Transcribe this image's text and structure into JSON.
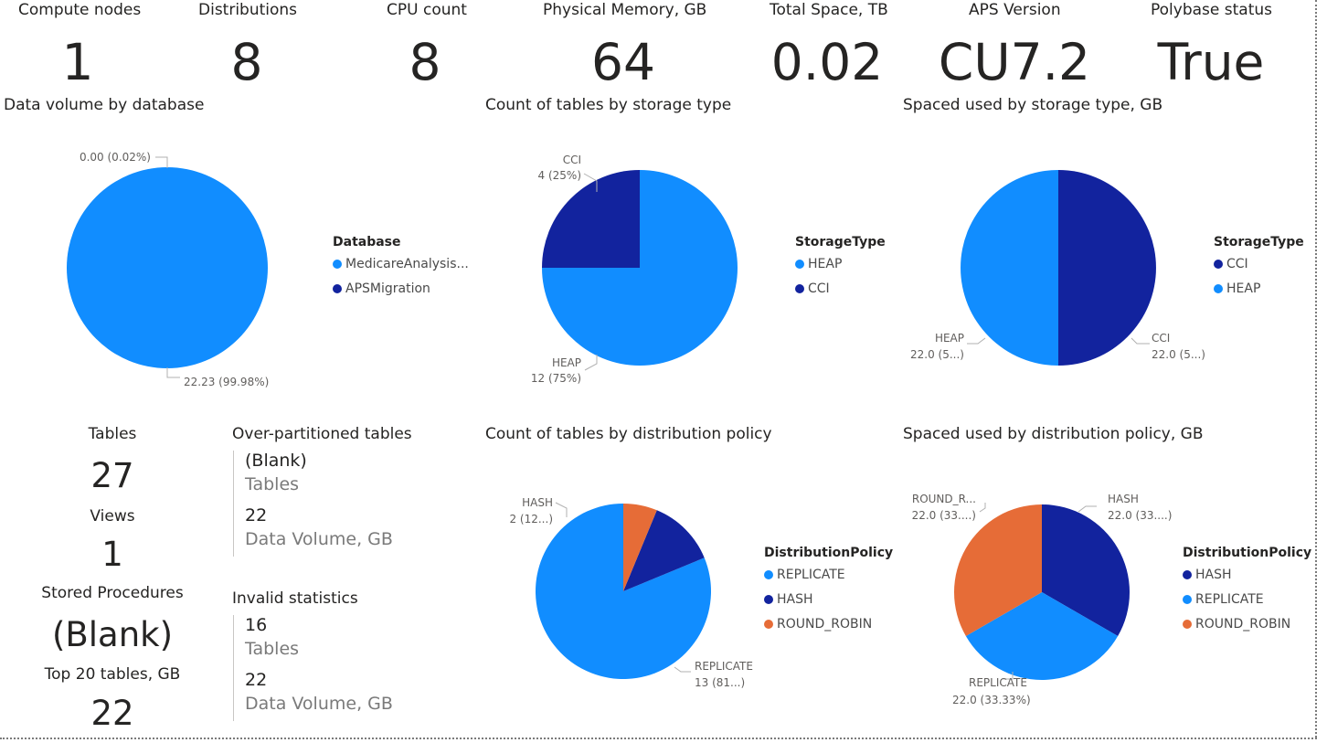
{
  "kpis": [
    {
      "title": "Compute nodes",
      "value": "1"
    },
    {
      "title": "Distributions",
      "value": "8"
    },
    {
      "title": "CPU count",
      "value": "8"
    },
    {
      "title": "Physical Memory, GB",
      "value": "64"
    },
    {
      "title": "Total Space, TB",
      "value": "0.02"
    },
    {
      "title": "APS Version",
      "value": "CU7.2"
    },
    {
      "title": "Polybase status",
      "value": "True"
    }
  ],
  "left_stats": [
    {
      "title": "Tables",
      "value": "27"
    },
    {
      "title": "Views",
      "value": "1"
    },
    {
      "title": "Stored Procedures",
      "value": "(Blank)"
    },
    {
      "title": "Top 20 tables, GB",
      "value": "22"
    }
  ],
  "multirow": [
    {
      "title": "Over-partitioned tables",
      "rows": [
        {
          "value": "(Blank)",
          "label": "Tables"
        },
        {
          "value": "22",
          "label": "Data Volume, GB"
        }
      ]
    },
    {
      "title": "Invalid statistics",
      "rows": [
        {
          "value": "16",
          "label": "Tables"
        },
        {
          "value": "22",
          "label": "Data Volume, GB"
        }
      ]
    }
  ],
  "colors": {
    "light_blue": "#118DFF",
    "dark_blue": "#12239E",
    "orange": "#E66C37"
  },
  "chart_data": [
    {
      "type": "pie",
      "title": "Data volume by database",
      "legend_title": "Database",
      "legend_position": "right",
      "series": [
        {
          "name": "MedicareAnalysis...",
          "value": 22.23,
          "color": "#118DFF",
          "label": "22.23 (99.98%)"
        },
        {
          "name": "APSMigration",
          "value": 0.0,
          "color": "#12239E",
          "label": "0.00 (0.02%)"
        }
      ]
    },
    {
      "type": "pie",
      "title": "Count of tables by storage type",
      "legend_title": "StorageType",
      "legend_position": "right",
      "series": [
        {
          "name": "HEAP",
          "value": 12,
          "color": "#118DFF",
          "label_line1": "HEAP",
          "label_line2": "12 (75%)"
        },
        {
          "name": "CCI",
          "value": 4,
          "color": "#12239E",
          "label_line1": "CCI",
          "label_line2": "4 (25%)"
        }
      ]
    },
    {
      "type": "pie",
      "title": "Spaced used by storage type, GB",
      "legend_title": "StorageType",
      "legend_position": "right",
      "series": [
        {
          "name": "CCI",
          "value": 22.0,
          "color": "#12239E",
          "label_line1": "CCI",
          "label_line2": "22.0 (5...)"
        },
        {
          "name": "HEAP",
          "value": 22.0,
          "color": "#118DFF",
          "label_line1": "HEAP",
          "label_line2": "22.0 (5...)"
        }
      ]
    },
    {
      "type": "pie",
      "title": "Count of tables by distribution policy",
      "legend_title": "DistributionPolicy",
      "legend_position": "right",
      "series": [
        {
          "name": "REPLICATE",
          "value": 13,
          "color": "#118DFF",
          "label_line1": "REPLICATE",
          "label_line2": "13 (81...)"
        },
        {
          "name": "HASH",
          "value": 2,
          "color": "#12239E",
          "label_line1": "HASH",
          "label_line2": "2 (12...)"
        },
        {
          "name": "ROUND_ROBIN",
          "value": 1,
          "color": "#E66C37"
        }
      ]
    },
    {
      "type": "pie",
      "title": "Spaced used by distribution policy, GB",
      "legend_title": "DistributionPolicy",
      "legend_position": "right",
      "series": [
        {
          "name": "HASH",
          "value": 22.0,
          "color": "#12239E",
          "label_line1": "HASH",
          "label_line2": "22.0 (33....)"
        },
        {
          "name": "REPLICATE",
          "value": 22.0,
          "color": "#118DFF",
          "label_line1": "REPLICATE",
          "label_line2": "22.0 (33.33%)"
        },
        {
          "name": "ROUND_ROBIN",
          "value": 22.0,
          "color": "#E66C37",
          "label_line1": "ROUND_R...",
          "label_line2": "22.0 (33....)"
        }
      ]
    }
  ]
}
